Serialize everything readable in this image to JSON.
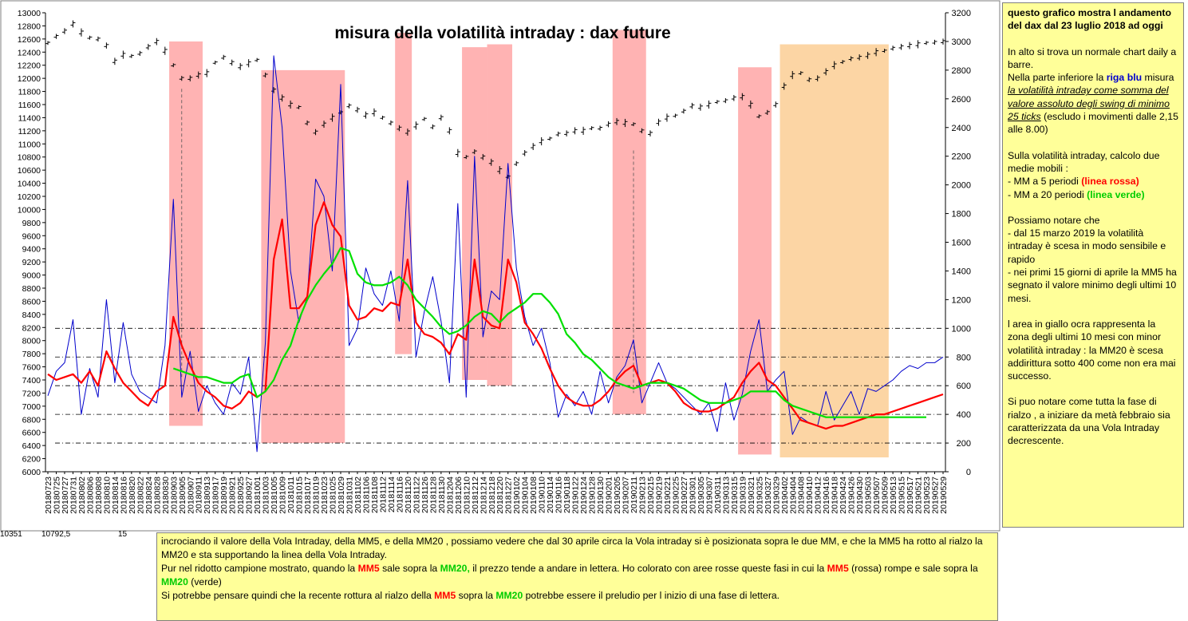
{
  "chart_data": {
    "type": "line",
    "title": "misura della volatilità intraday : dax future",
    "left_axis": {
      "min": 6000,
      "max": 13000,
      "step": 200
    },
    "right_axis": {
      "min": 0,
      "max": 3200,
      "step": 200
    },
    "x_dates": [
      "20180723",
      "20180725",
      "20180727",
      "20180731",
      "20180802",
      "20180806",
      "20180808",
      "20180810",
      "20180814",
      "20180816",
      "20180820",
      "20180822",
      "20180824",
      "20180828",
      "20180830",
      "20180903",
      "20180905",
      "20180907",
      "20180911",
      "20180913",
      "20180917",
      "20180919",
      "20180921",
      "20180925",
      "20180927",
      "20181001",
      "20181003",
      "20181005",
      "20181009",
      "20181011",
      "20181015",
      "20181017",
      "20181019",
      "20181023",
      "20181025",
      "20181029",
      "20181031",
      "20181102",
      "20181106",
      "20181108",
      "20181112",
      "20181114",
      "20181116",
      "20181120",
      "20181122",
      "20181126",
      "20181128",
      "20181130",
      "20181204",
      "20181206",
      "20181210",
      "20181212",
      "20181214",
      "20181218",
      "20181220",
      "20181227",
      "20190102",
      "20190104",
      "20190108",
      "20190110",
      "20190114",
      "20190116",
      "20190118",
      "20190122",
      "20190124",
      "20190128",
      "20190130",
      "20190201",
      "20190205",
      "20190207",
      "20190211",
      "20190213",
      "20190215",
      "20190219",
      "20190221",
      "20190225",
      "20190227",
      "20190301",
      "20190305",
      "20190307",
      "20190311",
      "20190313",
      "20190315",
      "20190319",
      "20190321",
      "20190325",
      "20190327",
      "20190329",
      "20190402",
      "20190404",
      "20190408",
      "20190410",
      "20190412",
      "20190416",
      "20190418",
      "20190424",
      "20190426",
      "20190430",
      "20190503",
      "20190507",
      "20190509",
      "20190513",
      "20190515",
      "20190517",
      "20190521",
      "20190523",
      "20190527",
      "20190529"
    ],
    "reference_lines_right_axis": [
      200,
      400,
      600,
      800,
      1000
    ],
    "red_zones": [
      {
        "from": "20180903",
        "to": "20180911",
        "top": 3000,
        "bottom": 320
      },
      {
        "from": "20181003",
        "to": "20181029",
        "top": 2800,
        "bottom": 200
      },
      {
        "from": "20181116",
        "to": "20181120",
        "top": 3060,
        "bottom": 820
      },
      {
        "from": "20181210",
        "to": "20181214",
        "top": 2960,
        "bottom": 640
      },
      {
        "from": "20181218",
        "to": "20181227",
        "top": 2980,
        "bottom": 600
      },
      {
        "from": "20190205",
        "to": "20190213",
        "top": 3080,
        "bottom": 400
      },
      {
        "from": "20190319",
        "to": "20190327",
        "top": 2820,
        "bottom": 120
      }
    ],
    "ocra_zone": {
      "from": "20190402",
      "to": "20190509",
      "top": 2980,
      "bottom": 100
    },
    "dashed_marks": [
      {
        "date": "20180905",
        "from": 11840,
        "to": 7420
      },
      {
        "date": "20190211",
        "to": 7200,
        "from": 10900
      }
    ],
    "price": [
      12540,
      12640,
      12720,
      12830,
      12700,
      12620,
      12600,
      12500,
      12260,
      12360,
      12340,
      12380,
      12480,
      12560,
      12420,
      12200,
      12000,
      12000,
      12050,
      12080,
      12240,
      12320,
      12240,
      12180,
      12230,
      12280,
      12050,
      11820,
      11700,
      11600,
      11560,
      11320,
      11180,
      11300,
      11400,
      11480,
      11580,
      11520,
      11440,
      11480,
      11400,
      11320,
      11240,
      11180,
      11280,
      11380,
      11260,
      11400,
      11200,
      10860,
      10800,
      10880,
      10800,
      10720,
      10600,
      10500,
      10700,
      10860,
      10960,
      11040,
      11080,
      11150,
      11160,
      11200,
      11200,
      11240,
      11240,
      11300,
      11340,
      11320,
      11300,
      11200,
      11160,
      11330,
      11400,
      11430,
      11500,
      11580,
      11560,
      11600,
      11640,
      11660,
      11700,
      11720,
      11600,
      11420,
      11480,
      11600,
      11880,
      12050,
      12080,
      11980,
      12000,
      12100,
      12200,
      12250,
      12300,
      12320,
      12350,
      12400,
      12420,
      12460,
      12480,
      12500,
      12520,
      12540,
      12550,
      12560
    ],
    "series": [
      {
        "name": "volatilità intraday",
        "color": "#0000cc",
        "values": [
          530,
          700,
          760,
          1060,
          400,
          720,
          520,
          1200,
          620,
          1040,
          680,
          560,
          520,
          480,
          880,
          1900,
          520,
          840,
          420,
          600,
          480,
          400,
          620,
          540,
          800,
          140,
          900,
          2900,
          2400,
          1400,
          1040,
          1220,
          2040,
          1920,
          1400,
          2700,
          880,
          1000,
          1420,
          1240,
          1160,
          1400,
          1050,
          2030,
          800,
          1120,
          1360,
          1050,
          620,
          1870,
          520,
          2200,
          940,
          1260,
          1200,
          2150,
          1420,
          1080,
          880,
          1000,
          760,
          380,
          540,
          460,
          560,
          400,
          700,
          480,
          660,
          740,
          920,
          480,
          620,
          760,
          620,
          580,
          520,
          460,
          400,
          480,
          280,
          620,
          360,
          540,
          840,
          1060,
          560,
          640,
          700,
          260,
          380,
          340,
          320,
          560,
          360,
          460,
          560,
          400,
          580,
          560,
          600,
          640,
          700,
          740,
          720,
          760,
          760,
          800
        ]
      },
      {
        "name": "MM5",
        "color": "#ff0000",
        "values": [
          680,
          640,
          660,
          680,
          620,
          700,
          600,
          840,
          720,
          620,
          560,
          500,
          460,
          560,
          600,
          1080,
          880,
          740,
          620,
          560,
          520,
          460,
          440,
          480,
          560,
          520,
          560,
          1480,
          1760,
          1140,
          1140,
          1220,
          1720,
          1880,
          1720,
          1640,
          1160,
          1060,
          1080,
          1140,
          1120,
          1180,
          1160,
          1480,
          1040,
          960,
          940,
          900,
          820,
          960,
          920,
          1480,
          1080,
          1020,
          1000,
          1480,
          1320,
          1040,
          960,
          860,
          720,
          600,
          520,
          480,
          460,
          460,
          500,
          560,
          640,
          700,
          740,
          600,
          620,
          640,
          620,
          560,
          480,
          440,
          420,
          420,
          440,
          480,
          520,
          620,
          700,
          760,
          640,
          600,
          520,
          440,
          360,
          340,
          320,
          300,
          320,
          320,
          340,
          360,
          380,
          400,
          400,
          420,
          440,
          460,
          480,
          500,
          520,
          540
        ]
      },
      {
        "name": "MM20",
        "color": "#00e000",
        "values": [
          null,
          null,
          null,
          null,
          null,
          null,
          null,
          null,
          null,
          null,
          null,
          null,
          null,
          null,
          null,
          720,
          700,
          680,
          660,
          660,
          640,
          620,
          620,
          660,
          680,
          520,
          560,
          640,
          780,
          880,
          1060,
          1200,
          1300,
          1380,
          1450,
          1560,
          1540,
          1380,
          1320,
          1300,
          1300,
          1320,
          1360,
          1300,
          1200,
          1140,
          1080,
          1010,
          960,
          980,
          1020,
          1080,
          1120,
          1100,
          1040,
          1100,
          1140,
          1180,
          1240,
          1240,
          1180,
          1100,
          960,
          900,
          820,
          780,
          720,
          660,
          620,
          600,
          580,
          600,
          620,
          620,
          620,
          600,
          580,
          540,
          500,
          480,
          480,
          480,
          500,
          520,
          560,
          560,
          560,
          560,
          500,
          460,
          440,
          420,
          400,
          380,
          380,
          380,
          380,
          380,
          380,
          380,
          380,
          380,
          380,
          380,
          380,
          380
        ]
      }
    ]
  },
  "side_note": {
    "heading": "questo grafico mostra l andamento del dax dal 23 luglio 2018 ad oggi",
    "p1": "In alto si trova un normale chart daily a barre.",
    "p2_a": "Nella parte inferiore la ",
    "p2_blue": "riga blu",
    "p2_b": " misura ",
    "p2_u": "la volatilità intraday come somma del valore assoluto degli swing di minimo 25 ticks",
    "p2_c": " (escludo i movimenti dalle 2,15 alle 8.00)",
    "p3_a": "Sulla volatilità intraday, calcolo due medie mobili :",
    "p3_b1": "- MM a 5 periodi ",
    "p3_red": "(linea rossa)",
    "p3_b2": "- MM a 20 periodi ",
    "p3_green": "(linea verde)",
    "p4_a": "Possiamo notare che",
    "p4_b": "- dal 15 marzo 2019 la volatilità intraday è scesa in modo sensibile e rapido",
    "p4_c": "- nei primi 15 giorni di aprile la MM5 ha segnato il valore minimo degli ultimi 10 mesi.",
    "p5": "l area in giallo ocra rappresenta la zona degli ultimi 10 mesi con minor volatilità intraday : la MM20 è scesa addirittura sotto 400 come non era mai successo.",
    "p6": "Si puo notare come tutta la fase di rialzo , a iniziare da metà febbraio sia caratterizzata da una Vola Intraday decrescente."
  },
  "bottom_note": {
    "line1": "incrociando il valore della Vola Intraday, della MM5,  e della MM20 , possiamo vedere che dal 30 aprile circa la Vola intraday si è posizionata sopra le due MM, e che la MM5 ha rotto al rialzo la MM20 e sta supportando la linea della Vola Intraday.",
    "l2_a": "Pur nel ridotto campione mostrato, quando la ",
    "l2_mm5": "MM5",
    "l2_b": " sale sopra la ",
    "l2_mm20": "MM20,",
    "l2_c": " il prezzo tende a andare in lettera.  Ho colorato con aree rosse queste fasi in cui la ",
    "l2_mm5b": "MM5",
    "l2_d": " (rossa) rompe e sale sopra la ",
    "l2_mm20b": "MM20",
    "l2_e": " (verde)",
    "l3_a": "Si potrebbe pensare quindi che la recente rottura al rialzo della ",
    "l3_mm5": "MM5",
    "l3_b": " sopra la ",
    "l3_mm20": "MM20",
    "l3_c": " potrebbe essere il preludio per l inizio di una fase di lettera."
  },
  "cells": {
    "c1": "10351",
    "c2": "10792,5",
    "c3": "15"
  }
}
